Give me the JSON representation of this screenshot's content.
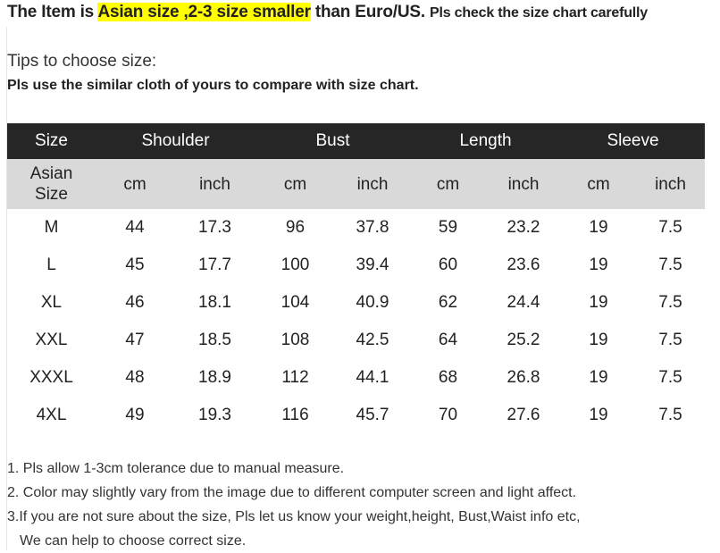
{
  "heading": {
    "pre": "The Item is ",
    "highlight": "Asian size ,2-3 size smaller",
    "post": " than Euro/US. ",
    "small": "Pls check the size chart carefully",
    "highlight_color": "#ffff00"
  },
  "tips": {
    "title": "Tips to choose size:",
    "subtitle": "Pls use the similar cloth of yours to compare with size chart."
  },
  "table": {
    "header": [
      "Size",
      "Shoulder",
      "Bust",
      "Length",
      "Sleeve"
    ],
    "subheader": {
      "size_line1": "Asian",
      "size_line2": "Size",
      "units": [
        "cm",
        "inch",
        "cm",
        "inch",
        "cm",
        "inch",
        "cm",
        "inch"
      ]
    },
    "rows": [
      [
        "M",
        "44",
        "17.3",
        "96",
        "37.8",
        "59",
        "23.2",
        "19",
        "7.5"
      ],
      [
        "L",
        "45",
        "17.7",
        "100",
        "39.4",
        "60",
        "23.6",
        "19",
        "7.5"
      ],
      [
        "XL",
        "46",
        "18.1",
        "104",
        "40.9",
        "62",
        "24.4",
        "19",
        "7.5"
      ],
      [
        "XXL",
        "47",
        "18.5",
        "108",
        "42.5",
        "64",
        "25.2",
        "19",
        "7.5"
      ],
      [
        "XXXL",
        "48",
        "18.9",
        "112",
        "44.1",
        "68",
        "26.8",
        "19",
        "7.5"
      ],
      [
        "4XL",
        "49",
        "19.3",
        "116",
        "45.7",
        "70",
        "27.6",
        "19",
        "7.5"
      ]
    ]
  },
  "notes": [
    "1. Pls allow 1-3cm tolerance due to manual measure.",
    "2. Color may slightly vary from the image due to different computer screen and light affect.",
    "3.If you are not sure about the size, Pls let us know your weight,height, Bust,Waist info etc,",
    "We can help to choose correct size."
  ]
}
